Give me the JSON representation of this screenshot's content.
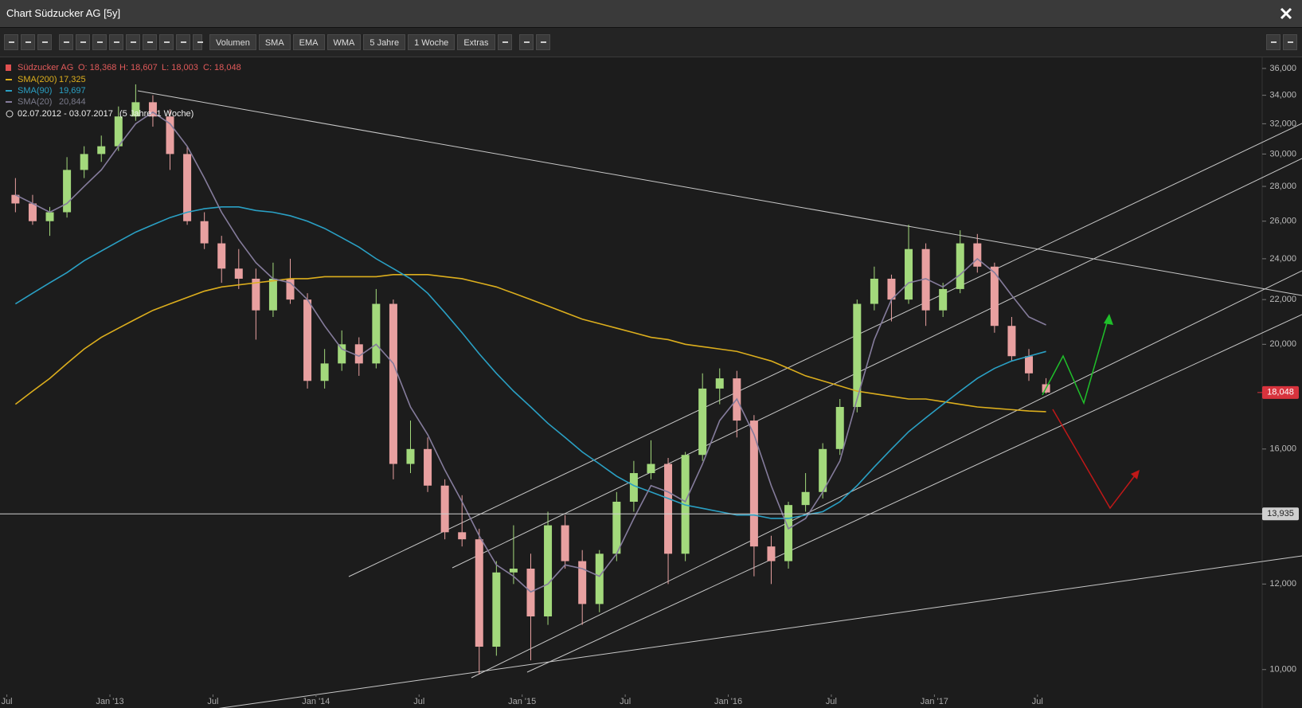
{
  "window_title": "Chart Südzucker AG [5y]",
  "toolbar": {
    "buttons": [
      "Volumen",
      "SMA",
      "EMA",
      "WMA",
      "5 Jahre",
      "1 Woche",
      "Extras"
    ]
  },
  "chart_data": {
    "type": "candlestick",
    "instrument": "Südzucker AG",
    "ohlc_labels": [
      "O: 18,368",
      "H: 18,607",
      "L: 18,003",
      "C: 18,048"
    ],
    "date_range": "02.07.2012 - 03.07.2017",
    "period": "(5 Jahre, 1 Woche)",
    "log_scale": true,
    "up_color": "#a3d97c",
    "down_color": "#e8a0a0",
    "x": [
      "2012-07",
      "2012-08",
      "2012-09",
      "2012-10",
      "2012-11",
      "2012-12",
      "2013-01",
      "2013-02",
      "2013-03",
      "2013-04",
      "2013-05",
      "2013-06",
      "2013-07",
      "2013-08",
      "2013-09",
      "2013-10",
      "2013-11",
      "2013-12",
      "2014-01",
      "2014-02",
      "2014-03",
      "2014-04",
      "2014-05",
      "2014-06",
      "2014-07",
      "2014-08",
      "2014-09",
      "2014-10",
      "2014-11",
      "2014-12",
      "2015-01",
      "2015-02",
      "2015-03",
      "2015-04",
      "2015-05",
      "2015-06",
      "2015-07",
      "2015-08",
      "2015-09",
      "2015-10",
      "2015-11",
      "2015-12",
      "2016-01",
      "2016-02",
      "2016-03",
      "2016-04",
      "2016-05",
      "2016-06",
      "2016-07",
      "2016-08",
      "2016-09",
      "2016-10",
      "2016-11",
      "2016-12",
      "2017-01",
      "2017-02",
      "2017-03",
      "2017-04",
      "2017-05",
      "2017-06",
      "2017-07"
    ],
    "candles": {
      "open": [
        27.5,
        27,
        26,
        26.5,
        29,
        30,
        30.5,
        32.5,
        33.5,
        32.5,
        30,
        26,
        24.8,
        23.5,
        23,
        21.5,
        23,
        22,
        18.5,
        19.2,
        20,
        19.2,
        21.8,
        15.5,
        16,
        14.8,
        13.4,
        13.2,
        10.5,
        12.3,
        12.4,
        11.2,
        13.6,
        12.6,
        11.5,
        12.8,
        14.3,
        15.2,
        15.5,
        12.8,
        15.8,
        18.2,
        18.6,
        17,
        13,
        12.6,
        14.2,
        14.6,
        16,
        17.5,
        21.8,
        23,
        22,
        24.5,
        21.5,
        22.5,
        24.8,
        23.6,
        20.8,
        19.5,
        18.368
      ],
      "high": [
        28.5,
        27.5,
        26.8,
        29.8,
        30.5,
        31.2,
        33.2,
        34.8,
        34,
        33,
        30.5,
        26.5,
        25.2,
        24.5,
        23.5,
        23.8,
        24,
        22.3,
        19.8,
        20.6,
        20.3,
        22.5,
        22,
        17,
        16.4,
        15,
        14.5,
        13.5,
        12.6,
        13.6,
        12.8,
        14,
        13.9,
        12.9,
        12.9,
        14.6,
        15.6,
        16.3,
        15.7,
        15.9,
        18.8,
        19,
        18.9,
        17.2,
        13.3,
        14.3,
        15.2,
        16.2,
        17.8,
        22,
        23.6,
        23.2,
        25.8,
        24.8,
        22.8,
        25.5,
        25.3,
        23.8,
        21.2,
        19.8,
        18.607
      ],
      "low": [
        26.5,
        25.8,
        25.2,
        26.2,
        28.5,
        29.5,
        30.2,
        32.2,
        31.8,
        29,
        25.8,
        24.5,
        22.8,
        22.5,
        20.2,
        21.2,
        21.8,
        18.2,
        18.2,
        18.9,
        18.7,
        19,
        15,
        15.2,
        14.6,
        13.2,
        13,
        9.9,
        10.3,
        12,
        10.2,
        11,
        12.4,
        11,
        11.3,
        12.6,
        14,
        15,
        12,
        12.6,
        15.6,
        17.6,
        16.4,
        12.2,
        12,
        12.4,
        14,
        14.4,
        15.8,
        17.3,
        21.5,
        21,
        21.8,
        20.8,
        21.2,
        22.3,
        23.3,
        20.5,
        19.3,
        18.5,
        18.003
      ],
      "close": [
        27,
        26,
        26.5,
        29,
        30,
        30.5,
        32.5,
        33.5,
        32.5,
        30,
        26,
        24.8,
        23.5,
        23,
        21.5,
        23,
        22,
        18.5,
        19.2,
        20,
        19.2,
        21.8,
        15.5,
        16,
        14.8,
        13.4,
        13.2,
        10.5,
        12.3,
        12.4,
        11.2,
        13.6,
        12.6,
        11.5,
        12.8,
        14.3,
        15.2,
        15.5,
        12.8,
        15.8,
        18.2,
        18.6,
        17,
        13,
        12.6,
        14.2,
        14.6,
        16,
        17.5,
        21.8,
        23,
        22,
        24.5,
        21.5,
        22.5,
        24.8,
        23.6,
        20.8,
        19.5,
        18.8,
        18.048
      ]
    },
    "series": [
      {
        "name": "SMA(200)",
        "value_label": "17,325",
        "color": "#dcae1d",
        "values": [
          17.6,
          18.1,
          18.6,
          19.2,
          19.8,
          20.3,
          20.7,
          21.1,
          21.5,
          21.8,
          22.1,
          22.4,
          22.6,
          22.7,
          22.8,
          22.9,
          23,
          23,
          23.1,
          23.1,
          23.1,
          23.1,
          23.2,
          23.2,
          23.2,
          23.1,
          23,
          22.8,
          22.6,
          22.3,
          22,
          21.7,
          21.4,
          21.1,
          20.9,
          20.7,
          20.5,
          20.3,
          20.2,
          20,
          19.9,
          19.8,
          19.7,
          19.5,
          19.3,
          19,
          18.7,
          18.5,
          18.3,
          18.1,
          18,
          17.9,
          17.8,
          17.8,
          17.7,
          17.6,
          17.5,
          17.45,
          17.4,
          17.35,
          17.325
        ]
      },
      {
        "name": "SMA(90)",
        "value_label": "19,697",
        "color": "#2aa0c4",
        "values": [
          21.8,
          22.3,
          22.8,
          23.3,
          23.9,
          24.4,
          24.9,
          25.4,
          25.8,
          26.2,
          26.5,
          26.7,
          26.8,
          26.8,
          26.6,
          26.5,
          26.3,
          26,
          25.6,
          25.1,
          24.6,
          24,
          23.5,
          23,
          22.3,
          21.4,
          20.5,
          19.6,
          18.8,
          18.1,
          17.5,
          16.9,
          16.4,
          15.9,
          15.5,
          15.1,
          14.8,
          14.6,
          14.4,
          14.2,
          14.1,
          14,
          13.9,
          13.9,
          13.8,
          13.8,
          13.9,
          14,
          14.3,
          14.8,
          15.4,
          16,
          16.6,
          17.1,
          17.6,
          18.1,
          18.6,
          19,
          19.3,
          19.5,
          19.697
        ]
      },
      {
        "name": "SMA(20)",
        "value_label": "20,844",
        "color": "#857c9c",
        "values": [
          27.5,
          27,
          26.5,
          27,
          28,
          29,
          30.5,
          32,
          32.8,
          32,
          30.5,
          28.5,
          26.5,
          25,
          23.8,
          23,
          22.8,
          22,
          20.8,
          19.8,
          19.5,
          20,
          19.2,
          17.5,
          16.5,
          15.3,
          14.3,
          13.3,
          12.5,
          12.2,
          11.8,
          12,
          12.5,
          12.4,
          12.2,
          12.8,
          13.8,
          14.8,
          14.6,
          14.3,
          15.5,
          17,
          17.8,
          16.5,
          14.8,
          13.5,
          13.8,
          14.6,
          15.6,
          17.8,
          20.2,
          22,
          22.8,
          23,
          22.6,
          23.2,
          24,
          23.3,
          22.2,
          21.2,
          20.844
        ]
      }
    ],
    "ylim": [
      9.5,
      36.8
    ],
    "yticks": [
      {
        "value": 10,
        "label": "10,000"
      },
      {
        "value": 12,
        "label": "12,000"
      },
      {
        "value": 14,
        "label": "14,000"
      },
      {
        "value": 16,
        "label": "16,000"
      },
      {
        "value": 18,
        "label": "18,000"
      },
      {
        "value": 20,
        "label": "20,000"
      },
      {
        "value": 22,
        "label": "22,000"
      },
      {
        "value": 24,
        "label": "24,000"
      },
      {
        "value": 26,
        "label": "26,000"
      },
      {
        "value": 28,
        "label": "28,000"
      },
      {
        "value": 30,
        "label": "30,000"
      },
      {
        "value": 32,
        "label": "32,000"
      },
      {
        "value": 34,
        "label": "34,000"
      },
      {
        "value": 36,
        "label": "36,000"
      }
    ],
    "xticks": [
      {
        "value": "2012-07",
        "label": "Jul"
      },
      {
        "value": "2013-01",
        "label": "Jan '13"
      },
      {
        "value": "2013-07",
        "label": "Jul"
      },
      {
        "value": "2014-01",
        "label": "Jan '14"
      },
      {
        "value": "2014-07",
        "label": "Jul"
      },
      {
        "value": "2015-01",
        "label": "Jan '15"
      },
      {
        "value": "2015-07",
        "label": "Jul"
      },
      {
        "value": "2016-01",
        "label": "Jan '16"
      },
      {
        "value": "2016-07",
        "label": "Jul"
      },
      {
        "value": "2017-01",
        "label": "Jan '17"
      },
      {
        "value": "2017-07",
        "label": "Jul"
      }
    ],
    "price_lines": [
      {
        "value": 13.935,
        "label": "13,935",
        "color": "#cfcfcf"
      },
      {
        "value": 18.048,
        "label": "18,048",
        "color": "#d8333d"
      }
    ]
  }
}
